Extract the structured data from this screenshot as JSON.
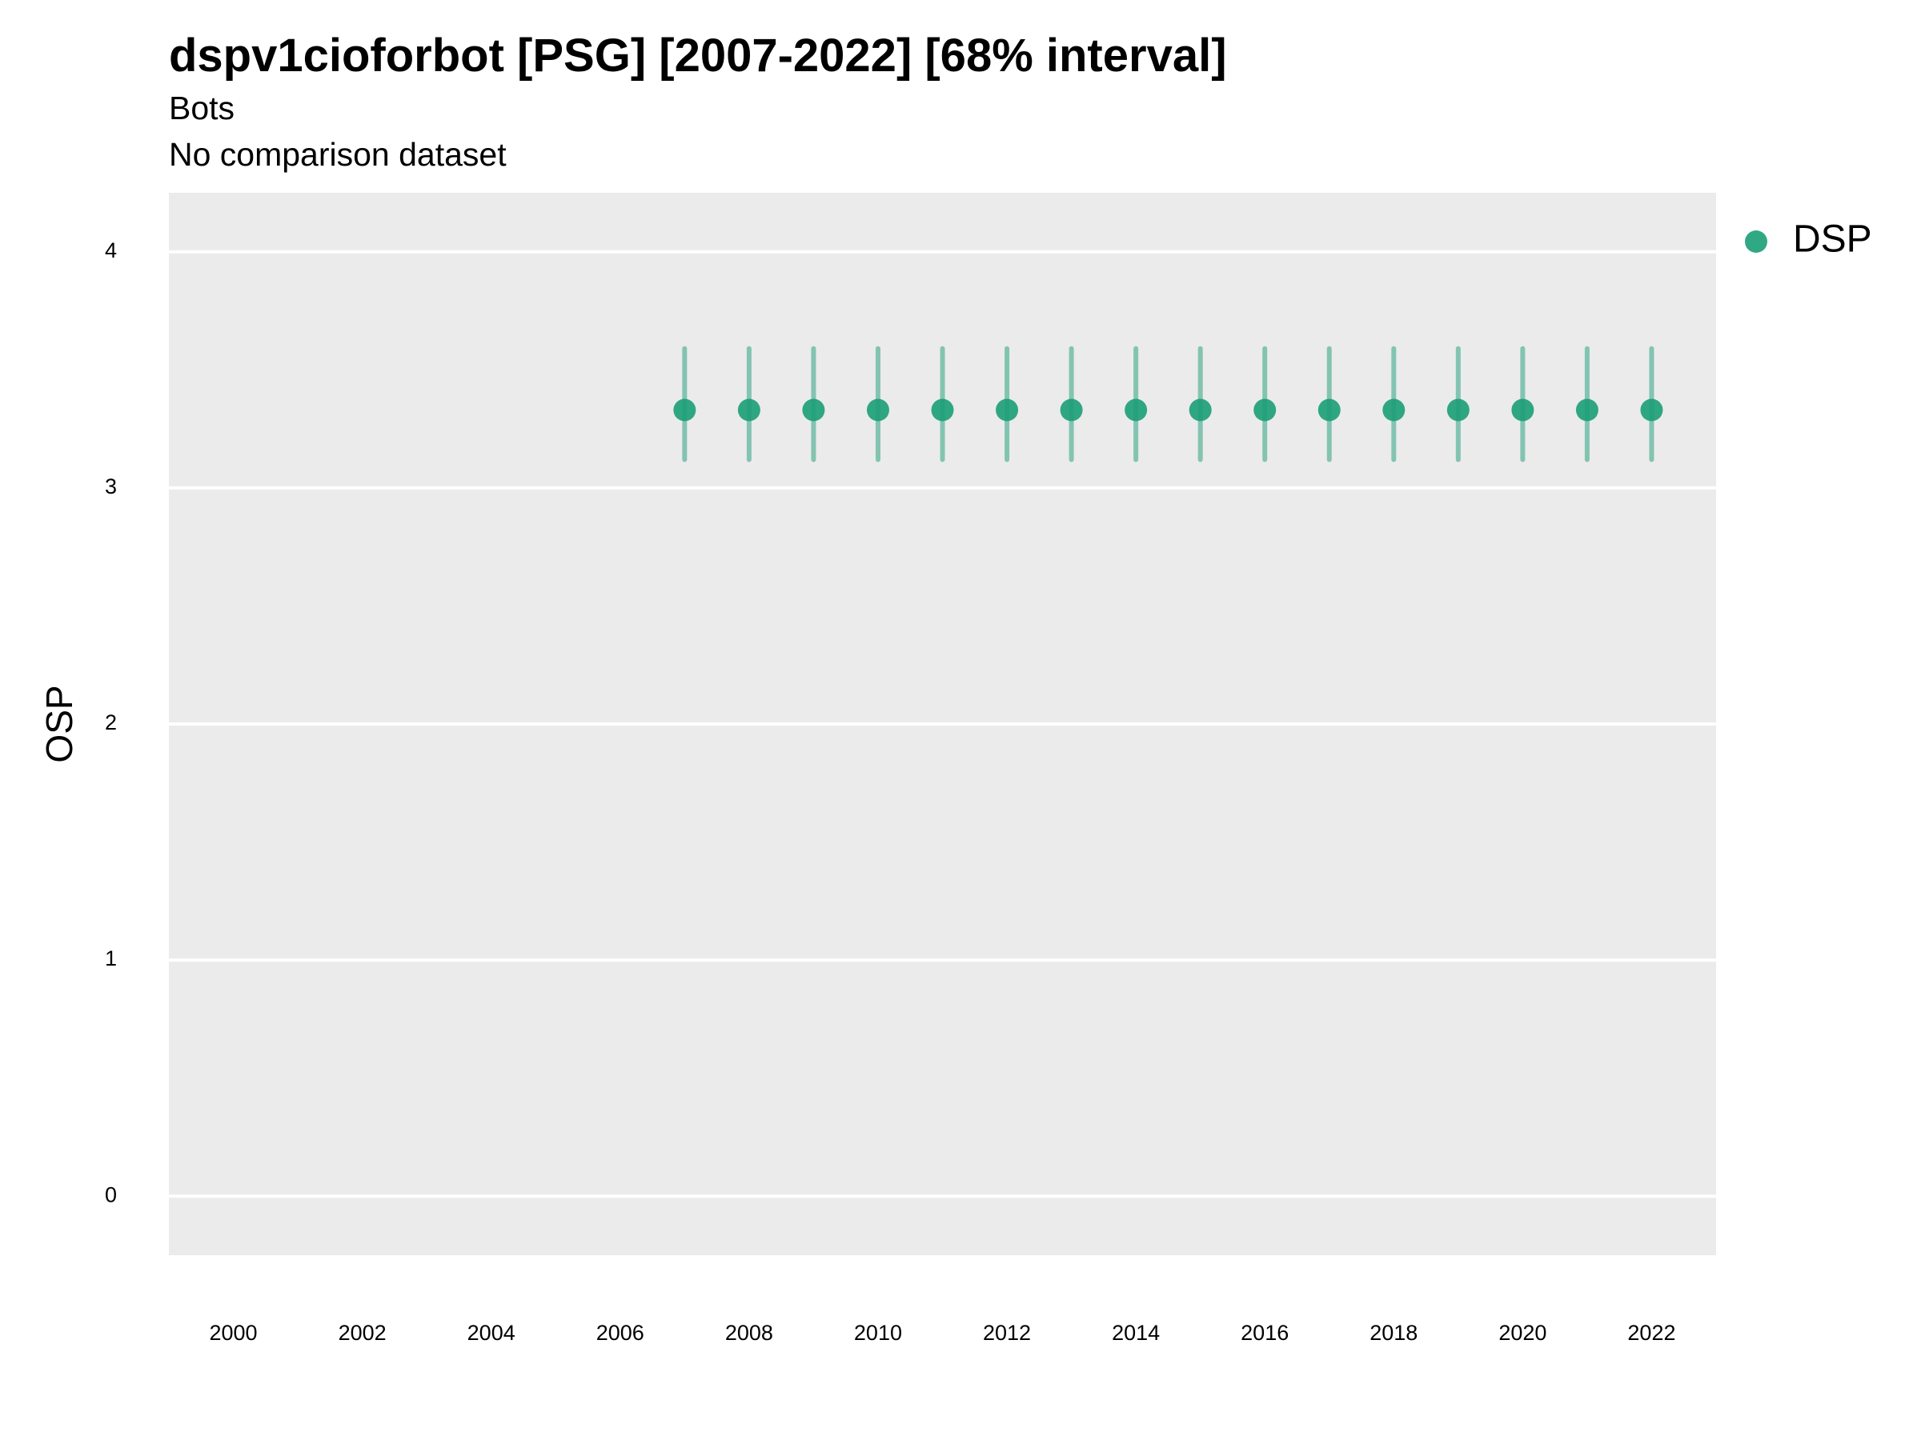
{
  "chart_data": {
    "type": "scatter",
    "title": "dspv1cioforbot [PSG] [2007-2022] [68% interval]",
    "subtitle": "Bots",
    "caption": "No comparison dataset",
    "xlabel": "",
    "ylabel": "OSP",
    "xlim": [
      1999,
      2023
    ],
    "ylim": [
      -0.25,
      4.25
    ],
    "xticks": [
      "2000",
      "2002",
      "2004",
      "2006",
      "2008",
      "2010",
      "2012",
      "2014",
      "2016",
      "2018",
      "2020",
      "2022"
    ],
    "yticks": [
      "0",
      "1",
      "2",
      "3",
      "4"
    ],
    "grid": true,
    "legend_position": "right",
    "series": [
      {
        "name": "DSP",
        "color": "#1B9E77",
        "x": [
          2007,
          2008,
          2009,
          2010,
          2011,
          2012,
          2013,
          2014,
          2015,
          2016,
          2017,
          2018,
          2019,
          2020,
          2021,
          2022
        ],
        "y": [
          3.33,
          3.33,
          3.33,
          3.33,
          3.33,
          3.33,
          3.33,
          3.33,
          3.33,
          3.33,
          3.33,
          3.33,
          3.33,
          3.33,
          3.33,
          3.33
        ],
        "lower": [
          3.12,
          3.12,
          3.12,
          3.12,
          3.12,
          3.12,
          3.12,
          3.12,
          3.12,
          3.12,
          3.12,
          3.12,
          3.12,
          3.12,
          3.12,
          3.12
        ],
        "upper": [
          3.59,
          3.59,
          3.59,
          3.59,
          3.59,
          3.59,
          3.59,
          3.59,
          3.59,
          3.59,
          3.59,
          3.59,
          3.59,
          3.59,
          3.59,
          3.59
        ]
      }
    ]
  }
}
